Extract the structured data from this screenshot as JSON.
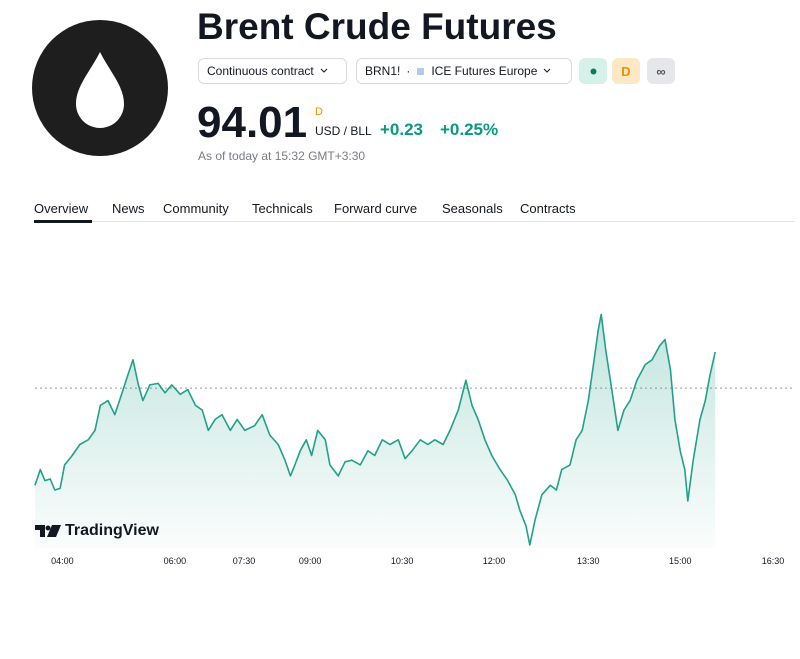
{
  "header": {
    "title": "Brent Crude Futures",
    "contract_button": "Continuous contract",
    "symbol": "BRN1!",
    "exchange": "ICE Futures Europe",
    "badges": [
      "D",
      "∞"
    ]
  },
  "quote": {
    "price": "94.01",
    "currency_flag": "D",
    "unit": "USD / BLL",
    "change": "+0.23",
    "change_percent": "+0.25%",
    "timestamp": "As of today at 15:32 GMT+3:30"
  },
  "tabs": [
    "Overview",
    "News",
    "Community",
    "Technicals",
    "Forward curve",
    "Seasonals",
    "Contracts"
  ],
  "branding": "TradingView",
  "chart_data": {
    "type": "line",
    "color": "#22a08a",
    "baseline": 93.78,
    "x": [
      0,
      0.7,
      1.3,
      2.0,
      2.6,
      3.3,
      3.9,
      4.9,
      5.9,
      7.0,
      7.9,
      8.6,
      9.6,
      10.5,
      11.4,
      12.2,
      12.9,
      13.6,
      14.2,
      15.1,
      16.2,
      17.1,
      18.0,
      19.1,
      20.1,
      21.1,
      22.0,
      22.8,
      23.7,
      24.6,
      25.7,
      26.6,
      27.6,
      28.9,
      29.9,
      30.9,
      32.0,
      32.9,
      33.6,
      34.2,
      34.9,
      35.7,
      36.4,
      37.2,
      38.2,
      38.8,
      39.9,
      40.8,
      41.7,
      42.8,
      43.8,
      44.7,
      45.7,
      46.7,
      47.8,
      48.7,
      49.6,
      50.7,
      51.7,
      52.6,
      53.7,
      54.6,
      55.7,
      56.7,
      57.5,
      58.3,
      59.2,
      60.1,
      61.2,
      62.2,
      63.2,
      63.8,
      64.6,
      65.1,
      65.8,
      66.7,
      67.8,
      68.6,
      69.3,
      70.4,
      71.2,
      72.0,
      72.8,
      73.4,
      74.1,
      74.5,
      75.1,
      75.9,
      76.7,
      77.5,
      78.3,
      79.2,
      80.3,
      81.2,
      82.2,
      82.9,
      83.6,
      84.2,
      84.9,
      85.5,
      85.9,
      86.6,
      87.5,
      88.2,
      88.8,
      89.5
    ],
    "values": [
      93.16,
      93.26,
      93.19,
      93.2,
      93.13,
      93.14,
      93.29,
      93.35,
      93.42,
      93.45,
      93.51,
      93.67,
      93.7,
      93.61,
      93.74,
      93.86,
      93.96,
      93.8,
      93.7,
      93.8,
      93.81,
      93.75,
      93.8,
      93.74,
      93.77,
      93.67,
      93.64,
      93.51,
      93.58,
      93.61,
      93.51,
      93.58,
      93.51,
      93.54,
      93.61,
      93.48,
      93.42,
      93.32,
      93.22,
      93.29,
      93.38,
      93.45,
      93.35,
      93.51,
      93.45,
      93.29,
      93.22,
      93.31,
      93.32,
      93.29,
      93.38,
      93.35,
      93.45,
      93.42,
      93.45,
      93.33,
      93.38,
      93.45,
      93.42,
      93.45,
      93.42,
      93.51,
      93.64,
      93.83,
      93.67,
      93.58,
      93.45,
      93.35,
      93.26,
      93.19,
      93.1,
      93.0,
      92.9,
      92.78,
      92.94,
      93.1,
      93.16,
      93.13,
      93.26,
      93.29,
      93.45,
      93.51,
      93.7,
      93.9,
      94.15,
      94.25,
      94.02,
      93.77,
      93.51,
      93.64,
      93.7,
      93.83,
      93.93,
      93.96,
      94.05,
      94.09,
      93.9,
      93.58,
      93.38,
      93.26,
      93.06,
      93.32,
      93.58,
      93.7,
      93.86,
      94.01
    ],
    "xlim": [
      0,
      100
    ],
    "ylim": [
      92.76,
      94.82
    ],
    "xticks": [
      {
        "value": 3.6,
        "label": "04:00"
      },
      {
        "value": 18.4,
        "label": "06:00"
      },
      {
        "value": 27.5,
        "label": "07:30"
      },
      {
        "value": 36.2,
        "label": "09:00"
      },
      {
        "value": 48.3,
        "label": "10:30"
      },
      {
        "value": 60.4,
        "label": "12:00"
      },
      {
        "value": 72.8,
        "label": "13:30"
      },
      {
        "value": 84.9,
        "label": "15:00"
      },
      {
        "value": 97.1,
        "label": "16:30"
      }
    ]
  }
}
